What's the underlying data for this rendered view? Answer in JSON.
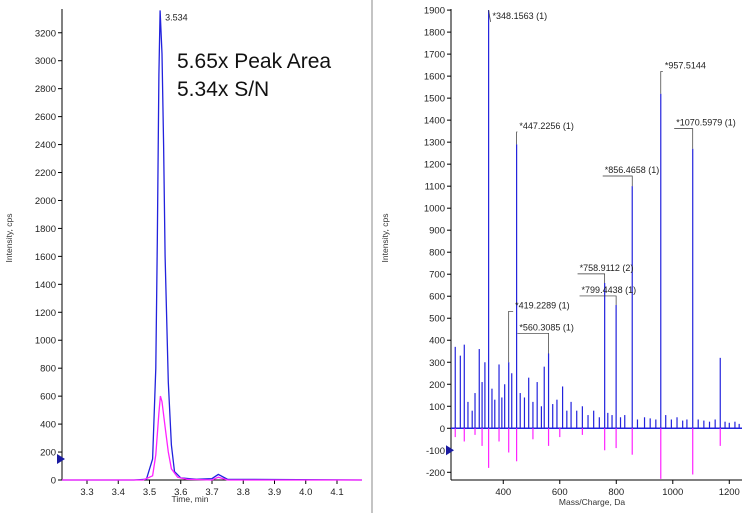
{
  "annotation": {
    "line1": "5.65x Peak Area",
    "line2": "5.34x S/N"
  },
  "colors": {
    "blue": "#2222dd",
    "magenta": "#ff22ff",
    "axis": "#000000",
    "marker": "#1a1aa0"
  },
  "chart_data": [
    {
      "type": "line",
      "title": "",
      "xlabel": "Time, min",
      "ylabel": "Intensity, cps",
      "xlim": [
        3.22,
        4.18
      ],
      "ylim": [
        0,
        3370
      ],
      "xticks": [
        3.3,
        3.4,
        3.5,
        3.6,
        3.7,
        3.8,
        3.9,
        4.0,
        4.1
      ],
      "xtick_labels": [
        "3.3",
        "3.4",
        "3.5",
        "3.6",
        "3.7",
        "3.8",
        "3.9",
        "4.0",
        "4.1"
      ],
      "yticks": [
        0,
        200,
        400,
        600,
        800,
        1000,
        1200,
        1400,
        1600,
        1800,
        2000,
        2200,
        2400,
        2600,
        2800,
        3000,
        3200
      ],
      "ytick_labels": [
        "0",
        "200",
        "400",
        "600",
        "800",
        "1000",
        "1200",
        "1400",
        "1600",
        "1800",
        "2000",
        "2200",
        "2400",
        "2600",
        "2800",
        "3000",
        "3200"
      ],
      "series": [
        {
          "color": "blue",
          "x": [
            3.22,
            3.45,
            3.49,
            3.51,
            3.52,
            3.525,
            3.53,
            3.534,
            3.54,
            3.545,
            3.55,
            3.56,
            3.57,
            3.58,
            3.6,
            3.65,
            3.7,
            3.72,
            3.75,
            4.18
          ],
          "y": [
            0,
            0,
            5,
            150,
            800,
            1700,
            2900,
            3360,
            3050,
            2400,
            1600,
            700,
            250,
            60,
            15,
            5,
            10,
            40,
            5,
            0
          ]
        },
        {
          "color": "magenta",
          "x": [
            3.22,
            3.48,
            3.51,
            3.52,
            3.53,
            3.535,
            3.54,
            3.55,
            3.56,
            3.57,
            3.59,
            3.62,
            3.7,
            3.72,
            3.75,
            4.18
          ],
          "y": [
            0,
            0,
            30,
            180,
            480,
            600,
            560,
            380,
            200,
            80,
            20,
            5,
            0,
            20,
            0,
            0
          ]
        }
      ],
      "peak_labels": [
        {
          "x": 3.534,
          "y": 3360,
          "text": "3.534"
        }
      ],
      "marker_y": 150
    },
    {
      "type": "bar",
      "title": "",
      "xlabel": "Mass/Charge, Da",
      "ylabel": "Intensity, cps",
      "xlim": [
        215,
        1245
      ],
      "ylim": [
        -235,
        1905
      ],
      "xticks": [
        400,
        600,
        800,
        1000,
        1200
      ],
      "xtick_labels": [
        "400",
        "600",
        "800",
        "1000",
        "1200"
      ],
      "yticks": [
        -200,
        -100,
        0,
        100,
        200,
        300,
        400,
        500,
        600,
        700,
        800,
        900,
        1000,
        1100,
        1200,
        1300,
        1400,
        1500,
        1600,
        1700,
        1800,
        1900
      ],
      "ytick_labels": [
        "-200",
        "-100",
        "0",
        "100",
        "200",
        "300",
        "400",
        "500",
        "600",
        "700",
        "800",
        "900",
        "1000",
        "1100",
        "1200",
        "1300",
        "1400",
        "1500",
        "1600",
        "1700",
        "1800",
        "1900"
      ],
      "series": [
        {
          "color": "blue",
          "x": [
            230,
            248,
            262,
            275,
            290,
            300,
            315,
            325,
            335,
            348.1563,
            360,
            370,
            385,
            395,
            405,
            419.2289,
            430,
            447.2256,
            460,
            475,
            490,
            505,
            520,
            535,
            545,
            560.3085,
            575,
            590,
            610,
            625,
            640,
            660,
            680,
            700,
            720,
            740,
            758.9112,
            770,
            785,
            799.4438,
            815,
            830,
            856.4658,
            875,
            900,
            920,
            940,
            957.5144,
            975,
            995,
            1015,
            1035,
            1050,
            1070.5979,
            1090,
            1110,
            1130,
            1150,
            1168,
            1185,
            1200,
            1220,
            1235
          ],
          "y": [
            370,
            330,
            380,
            120,
            80,
            160,
            360,
            210,
            300,
            1900,
            180,
            130,
            290,
            140,
            200,
            300,
            250,
            1290,
            160,
            140,
            230,
            120,
            210,
            100,
            280,
            340,
            110,
            130,
            190,
            80,
            120,
            80,
            100,
            60,
            80,
            50,
            660,
            70,
            60,
            560,
            50,
            60,
            1100,
            40,
            50,
            45,
            40,
            1520,
            60,
            40,
            50,
            35,
            40,
            1270,
            40,
            35,
            30,
            40,
            320,
            30,
            25,
            30,
            20
          ]
        },
        {
          "color": "magenta",
          "x": [
            230,
            262,
            300,
            325,
            348.1563,
            385,
            419.2289,
            447.2256,
            505,
            560.3085,
            600,
            680,
            758.9112,
            799.4438,
            856.4658,
            957.5144,
            1070.5979,
            1168
          ],
          "y": [
            -40,
            -60,
            -30,
            -80,
            -180,
            -60,
            -110,
            -150,
            -50,
            -80,
            -40,
            -30,
            -100,
            -90,
            -120,
            -230,
            -210,
            -80
          ]
        }
      ],
      "peak_labels": [
        {
          "x": 348.1563,
          "y": 1900,
          "text": "348.1563 (1)",
          "lx": 355,
          "ly": 1860
        },
        {
          "x": 447.2256,
          "y": 1290,
          "text": "447.2256 (1)",
          "lx": 450,
          "ly": 1360
        },
        {
          "x": 856.4658,
          "y": 1100,
          "text": "856.4658 (1)",
          "lx": 752,
          "ly": 1160
        },
        {
          "x": 957.5144,
          "y": 1520,
          "text": "957.5144",
          "lx": 965,
          "ly": 1635
        },
        {
          "x": 1070.5979,
          "y": 1270,
          "text": "1070.5979 (1)",
          "lx": 1005,
          "ly": 1375
        },
        {
          "x": 758.9112,
          "y": 660,
          "text": "758.9112 (2)",
          "lx": 663,
          "ly": 715
        },
        {
          "x": 799.4438,
          "y": 560,
          "text": "799.4438 (1)",
          "lx": 670,
          "ly": 615
        },
        {
          "x": 419.2289,
          "y": 300,
          "text": "419.2289 (1)",
          "lx": 435,
          "ly": 545
        },
        {
          "x": 560.3085,
          "y": 340,
          "text": "560.3085 (1)",
          "lx": 450,
          "ly": 445
        }
      ],
      "marker_y": -100
    }
  ]
}
